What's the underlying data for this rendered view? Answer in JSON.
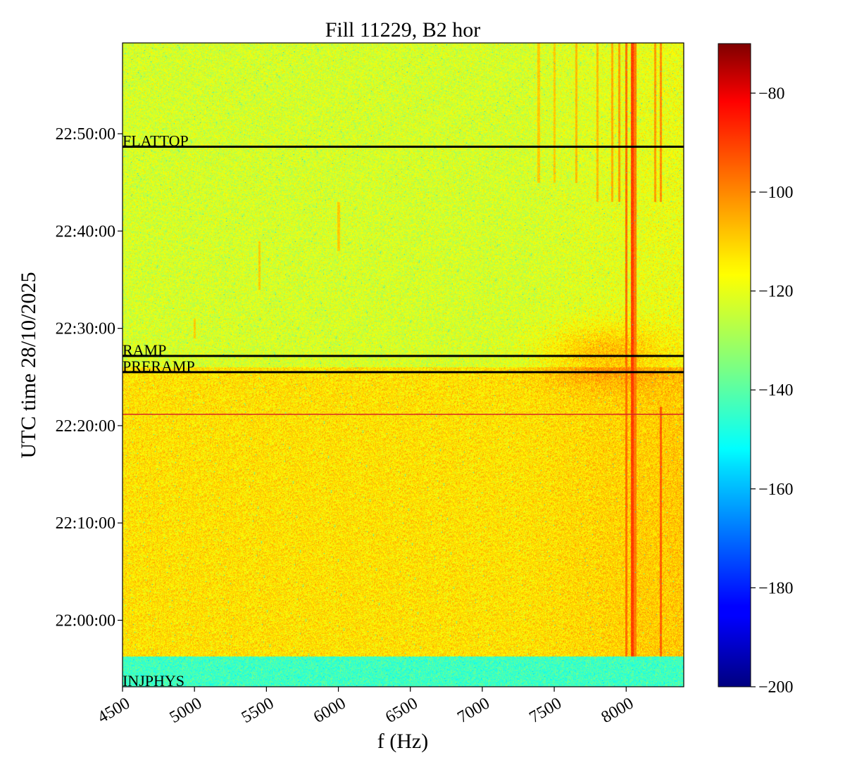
{
  "chart_data": {
    "type": "heatmap",
    "title": "Fill 11229, B2 hor",
    "xlabel": "f (Hz)",
    "ylabel": "UTC time 28/10/2025",
    "xlim": [
      4500,
      8400
    ],
    "x_ticks": [
      4500,
      5000,
      5500,
      6000,
      6500,
      7000,
      7500,
      8000
    ],
    "y_range_utc": [
      "21:53:10",
      "22:59:20"
    ],
    "y_ticks": [
      {
        "label": "22:00:00",
        "value": "22:00:00"
      },
      {
        "label": "22:10:00",
        "value": "22:10:00"
      },
      {
        "label": "22:20:00",
        "value": "22:20:00"
      },
      {
        "label": "22:30:00",
        "value": "22:30:00"
      },
      {
        "label": "22:40:00",
        "value": "22:40:00"
      },
      {
        "label": "22:50:00",
        "value": "22:50:00"
      }
    ],
    "colorbar": {
      "colormap": "jet",
      "min": -200,
      "max": -70,
      "ticks": [
        -80,
        -100,
        -120,
        -140,
        -160,
        -180,
        -200
      ],
      "tick_labels": [
        "−80",
        "−100",
        "−120",
        "−140",
        "−160",
        "−180",
        "−200"
      ]
    },
    "phase_markers": [
      {
        "label": "FLATTOP",
        "time": "22:48:40",
        "color": "#000000"
      },
      {
        "label": "RAMP",
        "time": "22:27:10",
        "color": "#000000"
      },
      {
        "label": "PRERAMP",
        "time": "22:25:30",
        "color": "#000000"
      },
      {
        "label": "",
        "time": "22:21:10",
        "color": "#d62728"
      },
      {
        "label": "INJPHYS",
        "time": "21:53:10",
        "color": "#000000"
      }
    ],
    "regions": [
      {
        "from": "21:53:10",
        "to": "21:56:20",
        "level_db": -143
      },
      {
        "from": "21:56:20",
        "to": "22:26:00",
        "level_db": -115
      },
      {
        "from": "22:26:00",
        "to": "22:59:20",
        "level_db": -124
      }
    ],
    "lines": [
      {
        "f": 8000,
        "from": "21:56:20",
        "to": "22:59:20",
        "level_db": -100
      },
      {
        "f": 8040,
        "from": "21:56:20",
        "to": "22:59:20",
        "level_db": -94
      },
      {
        "f": 8060,
        "from": "21:56:20",
        "to": "22:59:20",
        "level_db": -102
      },
      {
        "f": 8240,
        "from": "21:56:20",
        "to": "22:22:00",
        "level_db": -98
      },
      {
        "f": 8240,
        "from": "22:43:00",
        "to": "22:59:20",
        "level_db": -104
      },
      {
        "f": 8200,
        "from": "22:43:00",
        "to": "22:59:20",
        "level_db": -106
      },
      {
        "f": 7950,
        "from": "22:43:00",
        "to": "22:59:20",
        "level_db": -106
      },
      {
        "f": 7900,
        "from": "22:43:00",
        "to": "22:59:20",
        "level_db": -108
      },
      {
        "f": 7800,
        "from": "22:43:00",
        "to": "22:59:20",
        "level_db": -110
      },
      {
        "f": 7650,
        "from": "22:45:00",
        "to": "22:59:20",
        "level_db": -110
      },
      {
        "f": 7500,
        "from": "22:45:00",
        "to": "22:59:20",
        "level_db": -112
      },
      {
        "f": 7390,
        "from": "22:45:00",
        "to": "22:59:20",
        "level_db": -112
      },
      {
        "f": 6000,
        "from": "22:38:00",
        "to": "22:43:00",
        "level_db": -112
      },
      {
        "f": 5450,
        "from": "22:34:00",
        "to": "22:39:00",
        "level_db": -112
      },
      {
        "f": 5000,
        "from": "22:29:00",
        "to": "22:31:00",
        "level_db": -112
      }
    ]
  }
}
